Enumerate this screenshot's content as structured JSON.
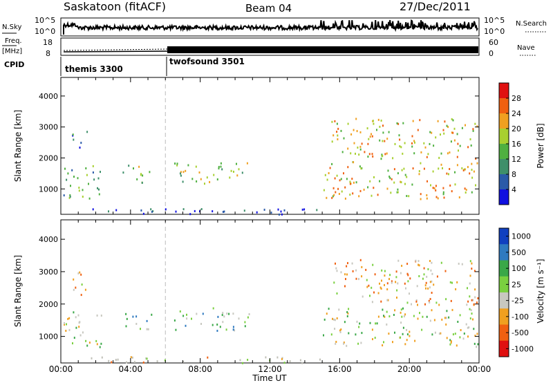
{
  "header": {
    "station": "Saskatoon (fitACF)",
    "beam": "Beam 04",
    "date": "27/Dec/2011"
  },
  "top_panels": {
    "nsky_label": "N.Sky",
    "nsearch_label": "N.Search",
    "freq_label_1": "Freq.",
    "freq_label_2": "[MHz]",
    "nave_label": "Nave",
    "cpid_label": "CPID",
    "nsky_ticks": [
      "10^5",
      "10^0"
    ],
    "freq_ticks": [
      "18",
      "8"
    ],
    "nave_ticks": [
      "60",
      "0"
    ],
    "programs": [
      {
        "name": "themis 3300",
        "start_hour": 0,
        "end_hour": 6
      },
      {
        "name": "twofsound 3501",
        "start_hour": 6,
        "end_hour": 24
      }
    ]
  },
  "colors": {
    "power": [
      "#1010e0",
      "#2a5aa8",
      "#3e8f6a",
      "#4fb040",
      "#a8d030",
      "#f0a020",
      "#f06010",
      "#e01010"
    ],
    "velocity": [
      "#1040c0",
      "#2f7ac0",
      "#3aa848",
      "#7ad040",
      "#c8c8c0",
      "#f0a020",
      "#f06010",
      "#e01010"
    ],
    "gray_scatter": "#c0c0b8"
  },
  "chart_data": [
    {
      "type": "heatmap",
      "title": "",
      "xlabel": "Time UT",
      "ylabel": "Slant Range [km]",
      "x_ticks": [
        "00:00",
        "04:00",
        "08:00",
        "12:00",
        "16:00",
        "20:00",
        "00:00"
      ],
      "y_ticks": [
        "1000",
        "2000",
        "3000",
        "4000"
      ],
      "xlim": [
        0,
        24
      ],
      "ylim": [
        180,
        4600
      ],
      "colorbar": {
        "label": "Power [dB]",
        "ticks": [
          "4",
          "8",
          "12",
          "16",
          "20",
          "24",
          "28"
        ]
      },
      "regions": [
        {
          "t0": 0.1,
          "t1": 2.3,
          "r0": 700,
          "r1": 1800,
          "level": 3
        },
        {
          "t0": 0.6,
          "t1": 1.5,
          "r0": 2300,
          "r1": 2900,
          "level": 2
        },
        {
          "t0": 3.5,
          "t1": 5.2,
          "r0": 1200,
          "r1": 1800,
          "level": 4
        },
        {
          "t0": 6.5,
          "t1": 10.8,
          "r0": 1200,
          "r1": 1900,
          "level": 4
        },
        {
          "t0": 15.0,
          "t1": 23.9,
          "r0": 700,
          "r1": 1900,
          "level": 5
        },
        {
          "t0": 15.5,
          "t1": 23.9,
          "r0": 2000,
          "r1": 3300,
          "level": 5
        },
        {
          "t0": 1.5,
          "t1": 15.0,
          "r0": 200,
          "r1": 400,
          "level": 1
        }
      ]
    },
    {
      "type": "heatmap",
      "title": "",
      "xlabel": "Time UT",
      "ylabel": "Slant Range [km]",
      "x_ticks": [
        "00:00",
        "04:00",
        "08:00",
        "12:00",
        "16:00",
        "20:00",
        "00:00"
      ],
      "y_ticks": [
        "1000",
        "2000",
        "3000",
        "4000"
      ],
      "xlim": [
        0,
        24
      ],
      "ylim": [
        180,
        4600
      ],
      "colorbar": {
        "label": "Velocity [m s⁻¹]",
        "ticks": [
          "1000",
          "500",
          "100",
          "25",
          "-25",
          "-100",
          "-500",
          "-1000"
        ]
      },
      "regions": [
        {
          "t0": 0.1,
          "t1": 2.3,
          "r0": 700,
          "r1": 1800,
          "level": 4
        },
        {
          "t0": 0.6,
          "t1": 1.5,
          "r0": 2300,
          "r1": 3200,
          "level": 5
        },
        {
          "t0": 3.5,
          "t1": 5.2,
          "r0": 1200,
          "r1": 1800,
          "level": 3
        },
        {
          "t0": 6.5,
          "t1": 10.8,
          "r0": 1200,
          "r1": 1900,
          "level": 3
        },
        {
          "t0": 15.0,
          "t1": 23.9,
          "r0": 700,
          "r1": 1900,
          "level": 4
        },
        {
          "t0": 15.5,
          "t1": 23.9,
          "r0": 2000,
          "r1": 3400,
          "level": 5
        },
        {
          "t0": 1.5,
          "t1": 15.0,
          "r0": 200,
          "r1": 400,
          "level": 5
        }
      ]
    }
  ]
}
